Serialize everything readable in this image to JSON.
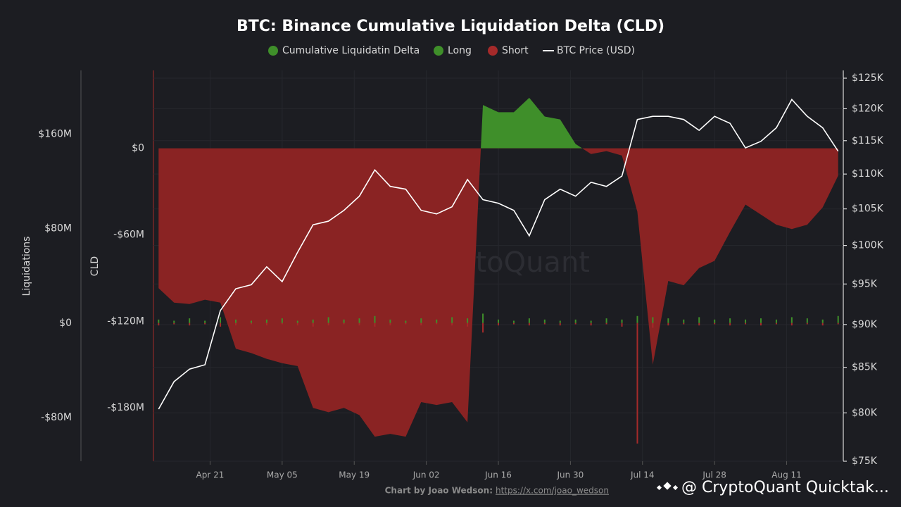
{
  "chart_data": {
    "type": "combo",
    "title": "BTC: Binance Cumulative Liquidation Delta (CLD)",
    "ylabel": "CLD",
    "liquidations_label": "Liquidations",
    "watermark": "CryptoQuant",
    "credit": "Chart by Joao Wedson:",
    "credit_link": "https://x.com/joao_wedson",
    "footer_brand": "@ CryptoQuant Quicktak...",
    "x": [
      "Apr 11",
      "Apr 14",
      "Apr 17",
      "Apr 20",
      "Apr 23",
      "Apr 26",
      "Apr 29",
      "May 02",
      "May 05",
      "May 08",
      "May 11",
      "May 14",
      "May 17",
      "May 20",
      "May 23",
      "May 26",
      "May 29",
      "Jun 01",
      "Jun 04",
      "Jun 07",
      "Jun 10",
      "Jun 13",
      "Jun 16",
      "Jun 19",
      "Jun 22",
      "Jun 25",
      "Jun 28",
      "Jul 01",
      "Jul 04",
      "Jul 07",
      "Jul 10",
      "Jul 13",
      "Jul 16",
      "Jul 19",
      "Jul 22",
      "Jul 25",
      "Jul 28",
      "Jul 31",
      "Aug 03",
      "Aug 06",
      "Aug 09",
      "Aug 12",
      "Aug 15",
      "Aug 18",
      "Aug 21"
    ],
    "xlim": [
      "Apr 10",
      "Aug 22"
    ],
    "xticks": [
      "Apr 21",
      "May 05",
      "May 19",
      "Jun 02",
      "Jun 16",
      "Jun 30",
      "Jul 14",
      "Jul 28",
      "Aug 11"
    ],
    "ylim": [
      -217,
      54
    ],
    "yticks": [
      {
        "value": 0,
        "label": "$0"
      },
      {
        "value": -60,
        "label": "-$60M"
      },
      {
        "value": -120,
        "label": "-$120M"
      },
      {
        "value": -180,
        "label": "-$180M"
      }
    ],
    "liquidations_ylim": [
      -117,
      214
    ],
    "liquidations_yticks": [
      {
        "value": 160,
        "label": "$160M"
      },
      {
        "value": 80,
        "label": "$80M"
      },
      {
        "value": 0,
        "label": "$0"
      },
      {
        "value": -80,
        "label": "-$80M"
      }
    ],
    "y2lim": [
      75000,
      126300
    ],
    "y2scale": "log",
    "y2ticks": [
      {
        "value": 125000,
        "label": "$125K"
      },
      {
        "value": 120000,
        "label": "$120K"
      },
      {
        "value": 115000,
        "label": "$115K"
      },
      {
        "value": 110000,
        "label": "$110K"
      },
      {
        "value": 105000,
        "label": "$105K"
      },
      {
        "value": 100000,
        "label": "$100K"
      },
      {
        "value": 95000,
        "label": "$95K"
      },
      {
        "value": 90000,
        "label": "$90K"
      },
      {
        "value": 85000,
        "label": "$85K"
      },
      {
        "value": 80000,
        "label": "$80K"
      },
      {
        "value": 75000,
        "label": "$75K"
      }
    ],
    "grid": true,
    "series": [
      {
        "name": "Cumulative Liquidatin Delta",
        "type": "area",
        "axis": "y",
        "color": "#3f8f2a",
        "negative_color": "#8a2323",
        "values": [
          -97,
          -107,
          -108,
          -105,
          -107,
          -139,
          -142,
          -146,
          -149,
          -151,
          -180,
          -183,
          -180,
          -185,
          -200,
          -198,
          -200,
          -176,
          -178,
          -176,
          -190,
          30,
          25,
          25,
          35,
          22,
          20,
          3,
          -4,
          -2,
          -5,
          -44,
          -150,
          -92,
          -95,
          -83,
          -78,
          -58,
          -39,
          -46,
          -53,
          -56,
          -53,
          -41,
          -19
        ]
      },
      {
        "name": "Long",
        "type": "bar",
        "axis": "liquidations",
        "color": "#3f8f2a",
        "values": [
          3,
          2,
          4,
          2,
          5,
          3,
          2,
          3,
          4,
          2,
          3,
          5,
          3,
          4,
          6,
          3,
          2,
          4,
          3,
          5,
          4,
          8,
          3,
          2,
          4,
          3,
          2,
          3,
          2,
          4,
          3,
          6,
          5,
          4,
          3,
          5,
          3,
          4,
          3,
          4,
          3,
          5,
          4,
          3,
          6
        ]
      },
      {
        "name": "Short",
        "type": "bar",
        "axis": "liquidations",
        "color": "#a52a2a",
        "values": [
          -2,
          -1,
          -2,
          -1,
          -3,
          -2,
          -1,
          -2,
          -1,
          -2,
          -3,
          -2,
          -1,
          -2,
          -3,
          -2,
          -1,
          -2,
          -1,
          -2,
          -3,
          -8,
          -2,
          -1,
          -2,
          -1,
          -2,
          -1,
          -2,
          -1,
          -3,
          -102,
          -4,
          -2,
          -1,
          -2,
          -1,
          -2,
          -1,
          -2,
          -1,
          -2,
          -1,
          -2,
          -1
        ]
      },
      {
        "name": "BTC Price (USD)",
        "type": "line",
        "axis": "y2",
        "color": "#ffffff",
        "values": [
          80400,
          83400,
          84800,
          85300,
          91700,
          94400,
          94900,
          97200,
          95300,
          99100,
          102800,
          103300,
          104800,
          106800,
          110600,
          108200,
          107800,
          104800,
          104300,
          105300,
          109200,
          106300,
          105800,
          104800,
          101300,
          106300,
          107800,
          106800,
          108800,
          108200,
          109700,
          118300,
          118800,
          118800,
          118300,
          116600,
          118800,
          117700,
          113900,
          114900,
          117000,
          121500,
          118800,
          117000,
          113400
        ]
      }
    ]
  }
}
